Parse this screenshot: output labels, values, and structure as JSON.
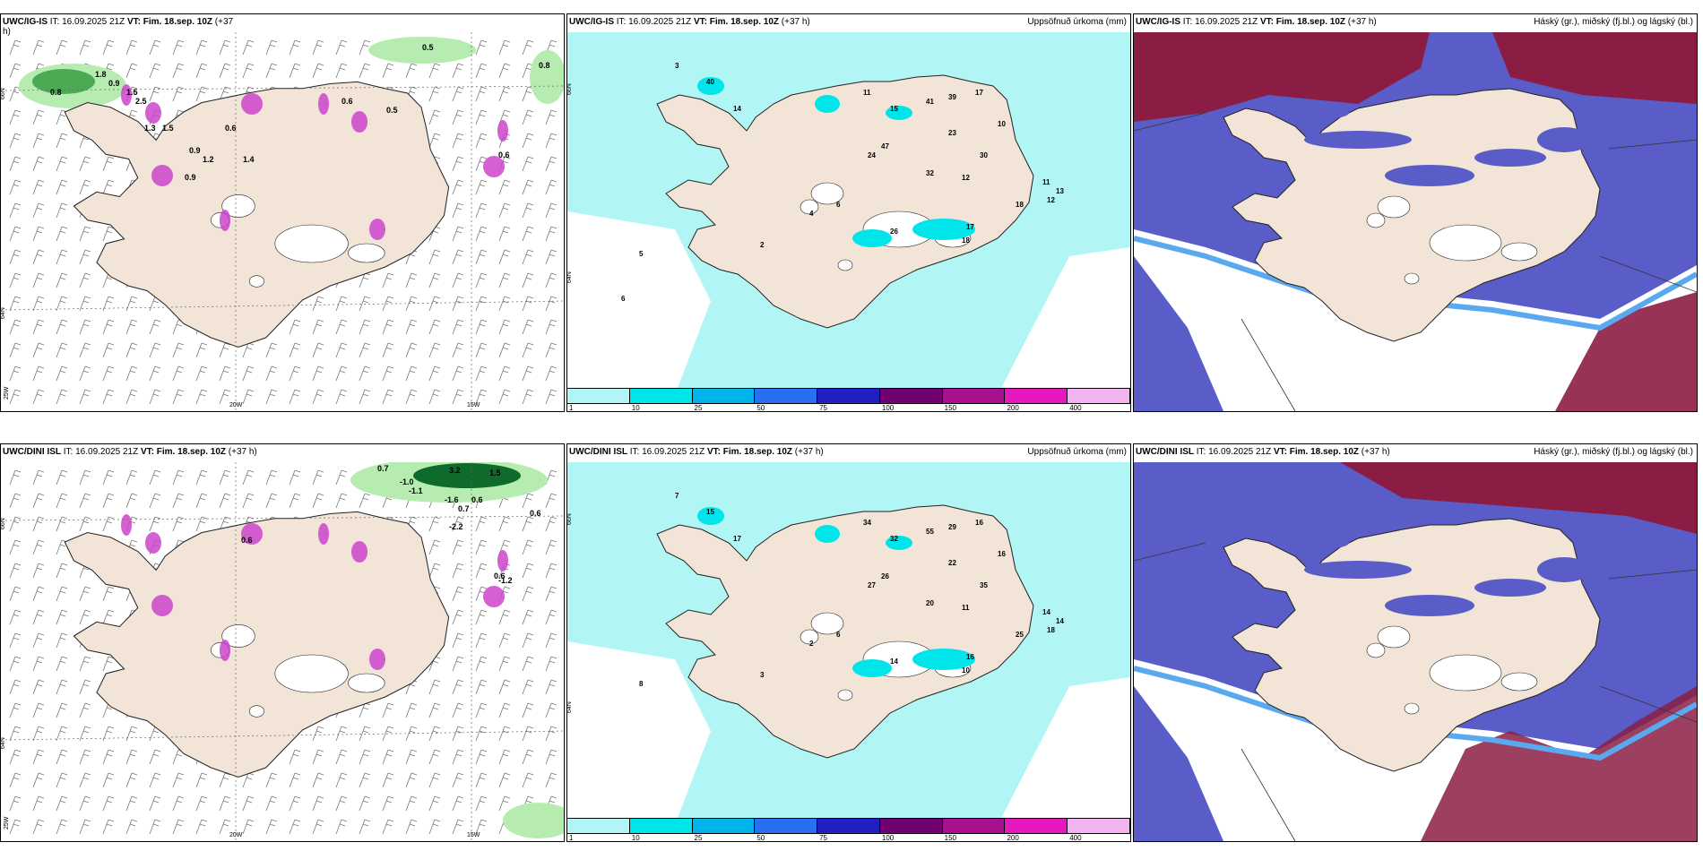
{
  "colors": {
    "land": "#f2e4d6",
    "light_cyan": "#b2f5f5",
    "cyan": "#00e5ea",
    "green_light": "#b6ecb0",
    "green_dark": "#0f6b2b",
    "magenta": "#cc44cc",
    "high_cloud": "#8b1d45",
    "mid_cloud": "#5a5cc8",
    "low_cloud": "#5aa9ef"
  },
  "panels": [
    {
      "id": "p1",
      "title_model": "UWC/IG-IS",
      "title_it": " IT: 16.09.2025 21Z ",
      "title_vt_label": "VT: Fim. 18.sep. 10Z",
      "title_suffix": " (+37",
      "title_cont": "h)",
      "right_label": "",
      "lat_labels": [
        "66N",
        "64N"
      ],
      "lon_labels": [
        "20W",
        "15W",
        "25W"
      ],
      "values": [
        "0.8",
        "1.8",
        "0.9",
        "1.5",
        "2.5",
        "1.3",
        "1.5",
        "0.6",
        "1.4",
        "0.9",
        "0.6",
        "0.5",
        "0.8",
        "0.5",
        "0.6",
        "0.9",
        "1.2"
      ]
    },
    {
      "id": "p2",
      "title_model": "UWC/IG-IS",
      "title_it": " IT: 16.09.2025 21Z ",
      "title_vt_label": "VT: Fim. 18.sep. 10Z",
      "title_suffix": " (+37 h)",
      "right_label": "Uppsöfnuð úrkoma (mm)",
      "lat_labels": [
        "66N",
        "64N"
      ],
      "values": [
        "40",
        "14",
        "11",
        "15",
        "41",
        "39",
        "17",
        "23",
        "10",
        "30",
        "47",
        "24",
        "32",
        "12",
        "11",
        "13",
        "18",
        "12",
        "17",
        "26",
        "18",
        "6",
        "4",
        "2",
        "3",
        "5",
        "6"
      ],
      "colorbar": {
        "colors": [
          "#b2f5f5",
          "#00e5ea",
          "#00b4ea",
          "#2a6ff0",
          "#2020c0",
          "#700070",
          "#a81090",
          "#e818c0",
          "#f3b2f0"
        ],
        "labels": [
          "1",
          "10",
          "25",
          "50",
          "75",
          "100",
          "150",
          "200",
          "400"
        ]
      }
    },
    {
      "id": "p3",
      "title_model": "UWC/IG-IS",
      "title_it": " IT: 16.09.2025 21Z ",
      "title_vt_label": "VT: Fim. 18.sep. 10Z",
      "title_suffix": " (+37 h)",
      "right_label": "Háský (gr.), miðský (fj.bl.) og lágský (bl.)"
    },
    {
      "id": "p4",
      "title_model": "UWC/DINI ISL",
      "title_it": " IT: 16.09.2025 21Z ",
      "title_vt_label": "VT: Fim. 18.sep. 10Z",
      "title_suffix": " (+37 h)",
      "right_label": "",
      "lat_labels": [
        "66N",
        "64N"
      ],
      "lon_labels": [
        "20W",
        "15W",
        "25W"
      ],
      "values": [
        "0.7",
        "-1.0",
        "-1.1",
        "3.2",
        "1.5",
        "-1.6",
        "0.6",
        "0.7",
        "0.6",
        "-2.2",
        "0.6",
        "0.6",
        "-1.2"
      ]
    },
    {
      "id": "p5",
      "title_model": "UWC/DINI ISL",
      "title_it": " IT: 16.09.2025 21Z ",
      "title_vt_label": "VT: Fim. 18.sep. 10Z",
      "title_suffix": " (+37 h)",
      "right_label": "Uppsöfnuð úrkoma (mm)",
      "lat_labels": [
        "66N",
        "64N"
      ],
      "values": [
        "15",
        "17",
        "34",
        "32",
        "55",
        "29",
        "16",
        "22",
        "16",
        "35",
        "26",
        "27",
        "20",
        "11",
        "14",
        "14",
        "25",
        "18",
        "16",
        "14",
        "10",
        "6",
        "2",
        "3",
        "7",
        "8"
      ],
      "colorbar": {
        "colors": [
          "#b2f5f5",
          "#00e5ea",
          "#00b4ea",
          "#2a6ff0",
          "#2020c0",
          "#700070",
          "#a81090",
          "#e818c0",
          "#f3b2f0"
        ],
        "labels": [
          "1",
          "10",
          "25",
          "50",
          "75",
          "100",
          "150",
          "200",
          "400"
        ]
      }
    },
    {
      "id": "p6",
      "title_model": "UWC/DINI ISL",
      "title_it": " IT: 16.09.2025 21Z ",
      "title_vt_label": "VT: Fim. 18.sep. 10Z",
      "title_suffix": " (+37 h)",
      "right_label": "Háský (gr.), miðský (fj.bl.) og lágský (bl.)"
    }
  ]
}
